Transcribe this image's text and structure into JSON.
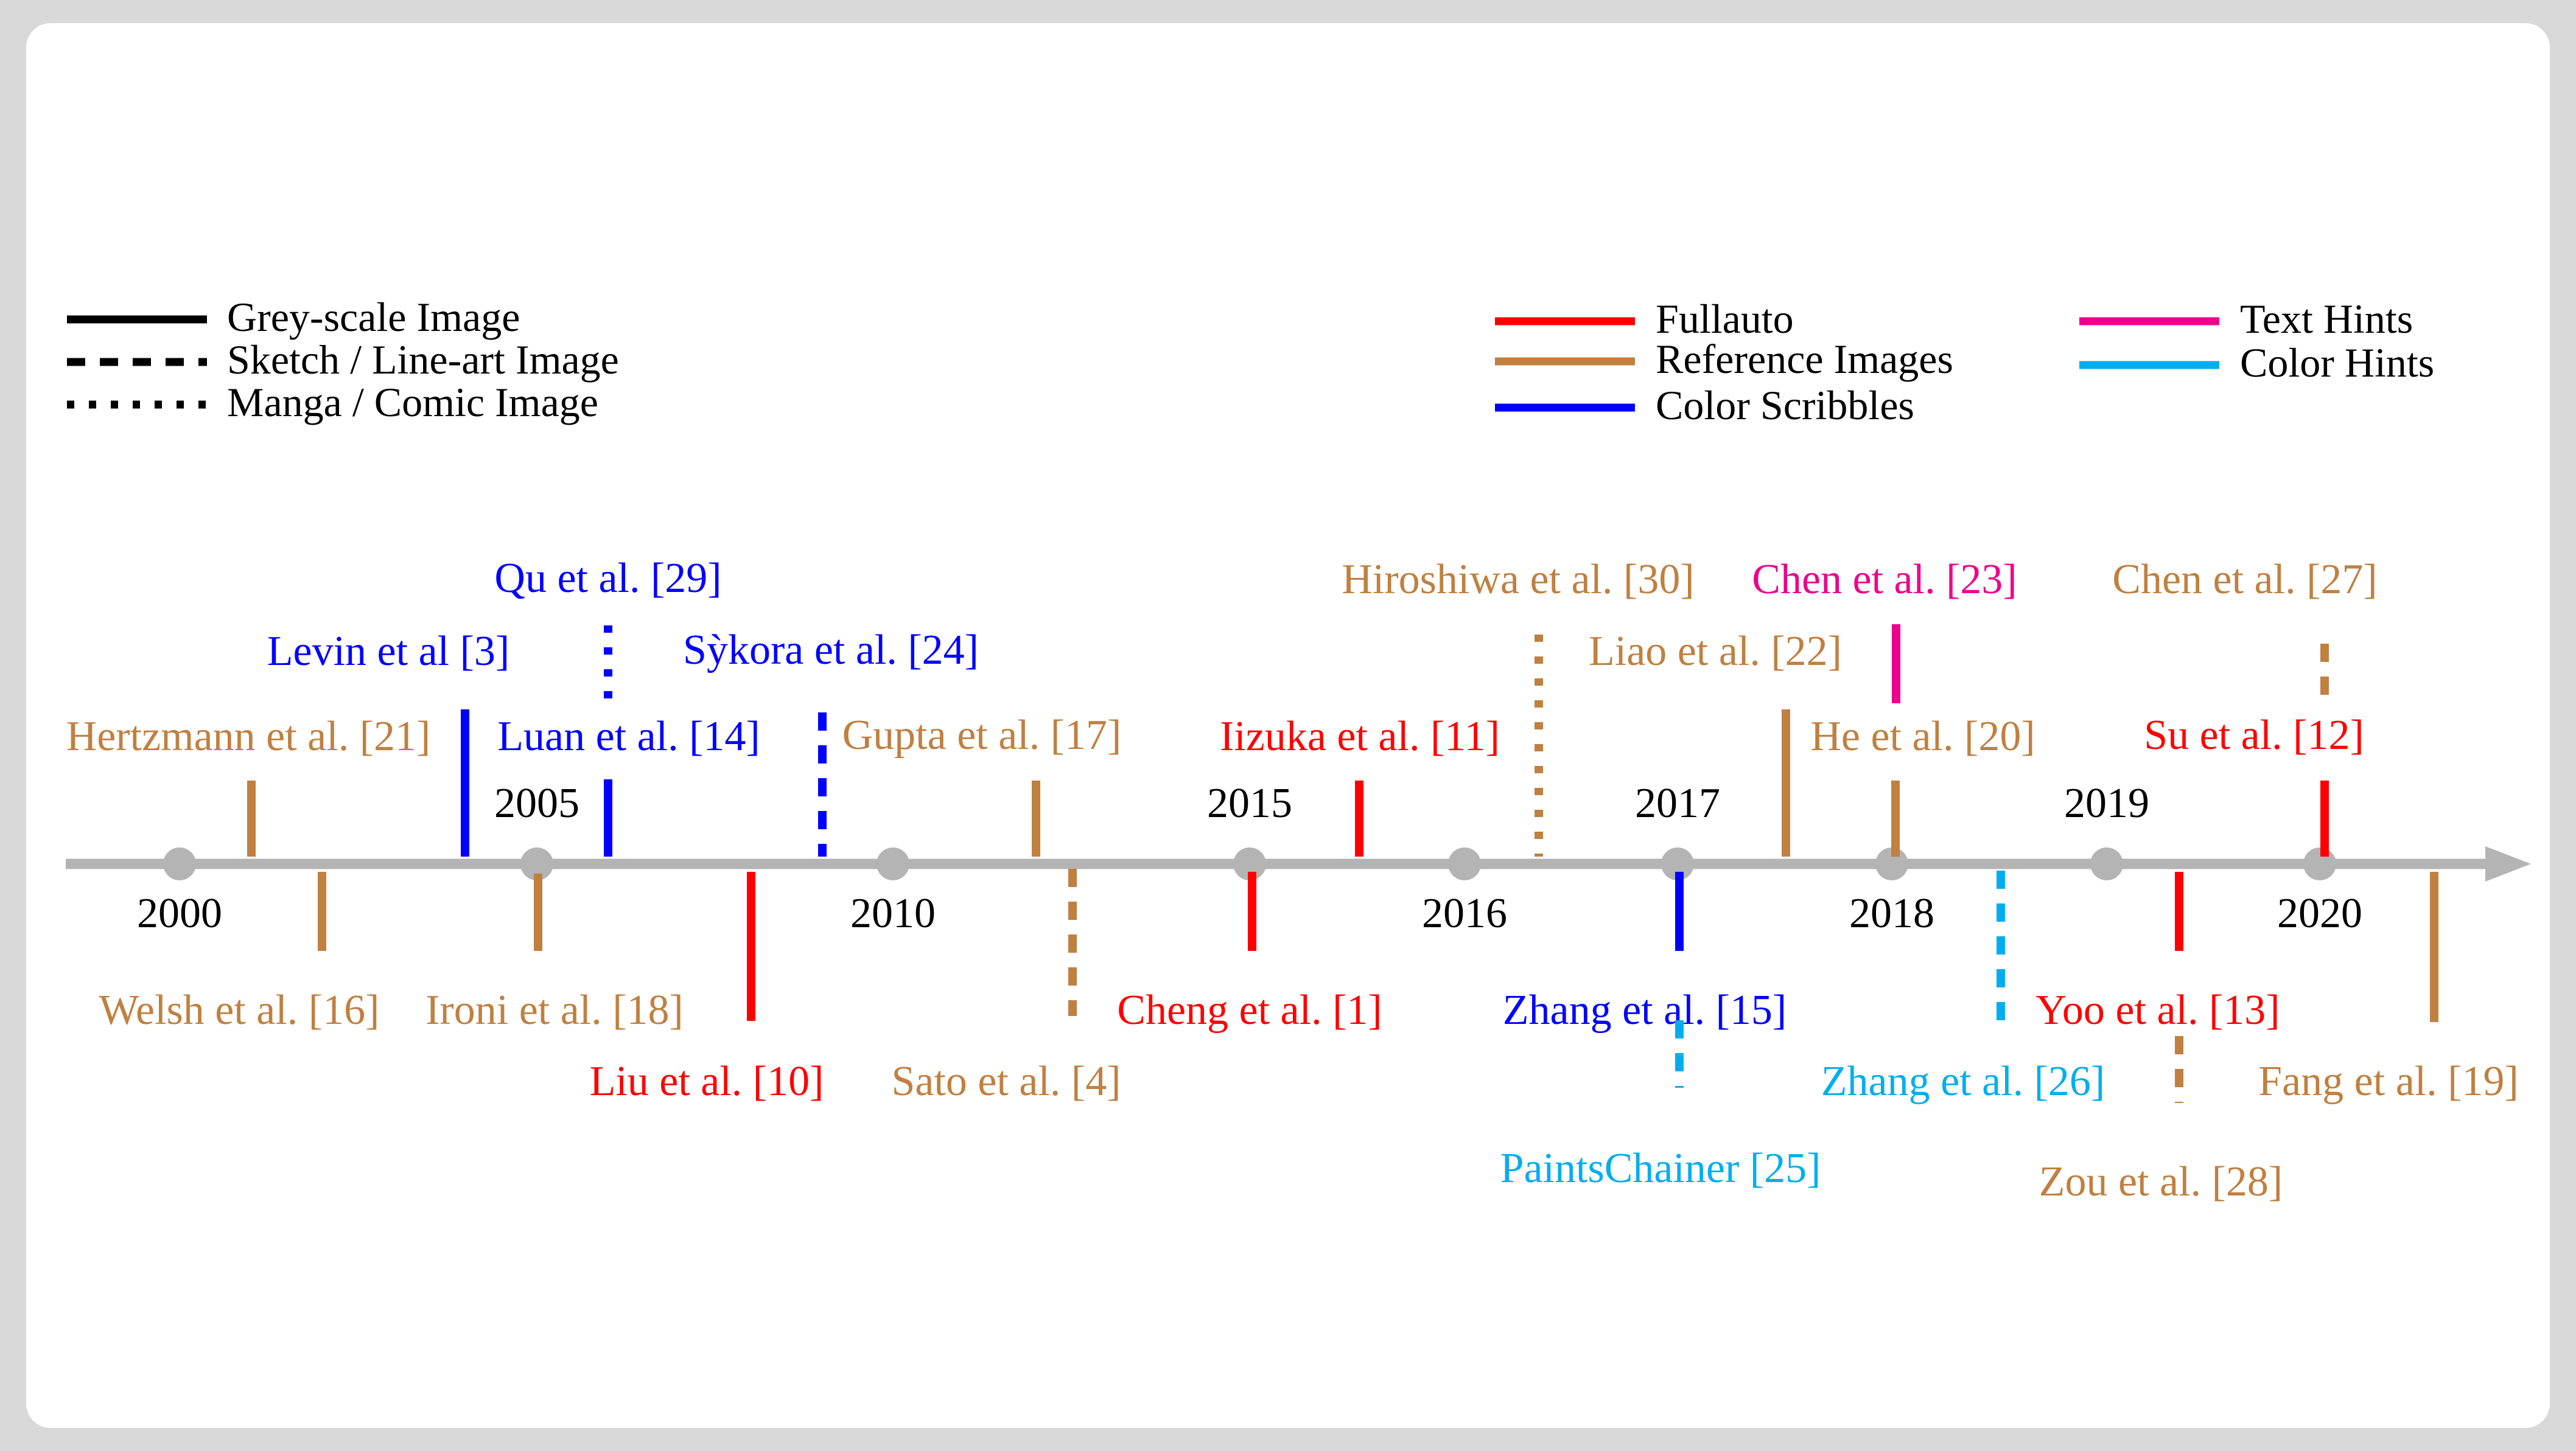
{
  "legend_styles": [
    {
      "id": "solid",
      "label": "Grey-scale Image"
    },
    {
      "id": "dashed",
      "label": "Sketch / Line-art Image"
    },
    {
      "id": "dotted",
      "label": "Manga / Comic Image"
    }
  ],
  "legend_colors": [
    {
      "id": "fullauto",
      "label": "Fullauto",
      "color": "#ff0000"
    },
    {
      "id": "reference",
      "label": "Reference Images",
      "color": "#c08040"
    },
    {
      "id": "scribbles",
      "label": "Color Scribbles",
      "color": "#0000ff"
    },
    {
      "id": "text",
      "label": "Text Hints",
      "color": "#ec008c"
    },
    {
      "id": "color",
      "label": "Color Hints",
      "color": "#00aeef"
    }
  ],
  "timeline_color": "#b4b4b4",
  "axis_ticks": [
    {
      "label": "2000",
      "pos": "below"
    },
    {
      "label": "2005",
      "pos": "above"
    },
    {
      "label": "2010",
      "pos": "below"
    },
    {
      "label": "2015",
      "pos": "above"
    },
    {
      "label": "2016",
      "pos": "below"
    },
    {
      "label": "2017",
      "pos": "above"
    },
    {
      "label": "2018",
      "pos": "below"
    },
    {
      "label": "2019",
      "pos": "above"
    },
    {
      "label": "2020",
      "pos": "below"
    }
  ],
  "works": [
    {
      "label": "Hertzmann et al. [21]",
      "hint": "reference",
      "image": "solid",
      "side": "up"
    },
    {
      "label": "Welsh et al. [16]",
      "hint": "reference",
      "image": "solid",
      "side": "down"
    },
    {
      "label": "Levin et al [3]",
      "hint": "scribbles",
      "image": "solid",
      "side": "up"
    },
    {
      "label": "Ironi et al. [18]",
      "hint": "reference",
      "image": "solid",
      "side": "down"
    },
    {
      "label": "Luan et al. [14]",
      "hint": "scribbles",
      "image": "solid",
      "side": "up"
    },
    {
      "label": "Qu et al. [29]",
      "hint": "scribbles",
      "image": "dotted",
      "side": "up"
    },
    {
      "label": "Liu et al. [10]",
      "hint": "fullauto",
      "image": "solid",
      "side": "down"
    },
    {
      "label": "Sỳkora et al. [24]",
      "hint": "scribbles",
      "image": "dashed",
      "side": "up"
    },
    {
      "label": "Gupta et al. [17]",
      "hint": "reference",
      "image": "solid",
      "side": "up"
    },
    {
      "label": "Sato et al. [4]",
      "hint": "reference",
      "image": "dashed",
      "side": "down"
    },
    {
      "label": "Cheng et al. [1]",
      "hint": "fullauto",
      "image": "solid",
      "side": "down"
    },
    {
      "label": "Iizuka et al. [11]",
      "hint": "fullauto",
      "image": "solid",
      "side": "up"
    },
    {
      "label": "Hiroshiwa et al. [30]",
      "hint": "reference",
      "image": "dotted",
      "side": "up"
    },
    {
      "label": "Zhang et al. [15]",
      "hint": "scribbles",
      "image": "solid",
      "side": "down"
    },
    {
      "label": "PaintsChainer [25]",
      "hint": "color",
      "image": "dashed",
      "side": "down"
    },
    {
      "label": "Liao et al. [22]",
      "hint": "reference",
      "image": "solid",
      "side": "up"
    },
    {
      "label": "Chen et al. [23]",
      "hint": "text",
      "image": "solid",
      "side": "up"
    },
    {
      "label": "He et al. [20]",
      "hint": "reference",
      "image": "solid",
      "side": "up"
    },
    {
      "label": "Zhang et al. [26]",
      "hint": "color",
      "image": "dashed",
      "side": "down"
    },
    {
      "label": "Yoo et al. [13]",
      "hint": "fullauto",
      "image": "solid",
      "side": "down"
    },
    {
      "label": "Zou et al. [28]",
      "hint": "reference",
      "image": "dashed",
      "side": "down"
    },
    {
      "label": "Su et al. [12]",
      "hint": "fullauto",
      "image": "solid",
      "side": "up"
    },
    {
      "label": "Chen et al. [27]",
      "hint": "reference",
      "image": "dashed",
      "side": "up"
    },
    {
      "label": "Fang et al. [19]",
      "hint": "reference",
      "image": "solid",
      "side": "down"
    }
  ]
}
